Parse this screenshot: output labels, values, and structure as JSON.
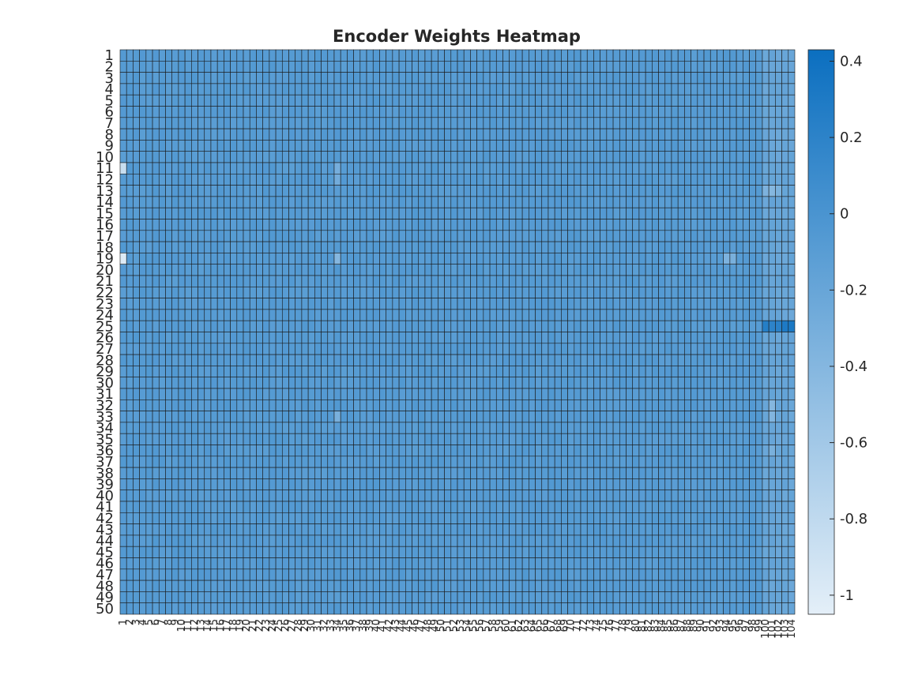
{
  "chart_data": {
    "type": "heatmap",
    "title": "Encoder Weights Heatmap",
    "xlabel": "",
    "ylabel": "",
    "n_rows": 50,
    "n_cols": 104,
    "row_labels": [
      "1",
      "2",
      "3",
      "4",
      "5",
      "6",
      "7",
      "8",
      "9",
      "10",
      "11",
      "12",
      "13",
      "14",
      "15",
      "16",
      "17",
      "18",
      "19",
      "20",
      "21",
      "22",
      "23",
      "24",
      "25",
      "26",
      "27",
      "28",
      "29",
      "30",
      "31",
      "32",
      "33",
      "34",
      "35",
      "36",
      "37",
      "38",
      "39",
      "40",
      "41",
      "42",
      "43",
      "44",
      "45",
      "46",
      "47",
      "48",
      "49",
      "50"
    ],
    "col_labels": [
      "1",
      "2",
      "3",
      "4",
      "5",
      "6",
      "7",
      "8",
      "9",
      "10",
      "11",
      "12",
      "13",
      "14",
      "15",
      "16",
      "17",
      "18",
      "19",
      "20",
      "21",
      "22",
      "23",
      "24",
      "25",
      "26",
      "27",
      "28",
      "29",
      "30",
      "31",
      "32",
      "33",
      "34",
      "35",
      "36",
      "37",
      "38",
      "39",
      "40",
      "41",
      "42",
      "43",
      "44",
      "45",
      "46",
      "47",
      "48",
      "49",
      "50",
      "51",
      "52",
      "53",
      "54",
      "55",
      "56",
      "57",
      "58",
      "59",
      "60",
      "61",
      "62",
      "63",
      "64",
      "65",
      "66",
      "67",
      "68",
      "69",
      "70",
      "71",
      "72",
      "73",
      "74",
      "75",
      "76",
      "77",
      "78",
      "79",
      "80",
      "81",
      "82",
      "83",
      "84",
      "85",
      "86",
      "87",
      "88",
      "89",
      "90",
      "91",
      "92",
      "93",
      "94",
      "95",
      "96",
      "97",
      "98",
      "99",
      "100",
      "101",
      "102",
      "103",
      "104"
    ],
    "base_value": -0.08,
    "color_scale": {
      "min": -1.05,
      "max": 0.43,
      "low_color": "#e4eff8",
      "high_color": "#0b6fc0"
    },
    "colorbar_ticks": [
      0.4,
      0.2,
      0,
      -0.2,
      -0.4,
      -0.6,
      -0.8,
      -1
    ],
    "colorbar_tick_labels": [
      "0.4",
      "0.2",
      "0",
      "-0.2",
      "-0.4",
      "-0.6",
      "-0.8",
      "-1"
    ],
    "grid": true,
    "notable_cells": [
      {
        "row": 11,
        "col": 1,
        "value": -0.85
      },
      {
        "row": 19,
        "col": 1,
        "value": -1.0
      },
      {
        "row": 25,
        "col": 100,
        "value": 0.25
      },
      {
        "row": 25,
        "col": 101,
        "value": 0.2
      },
      {
        "row": 25,
        "col": 102,
        "value": 0.22
      },
      {
        "row": 25,
        "col": 103,
        "value": 0.3
      },
      {
        "row": 25,
        "col": 104,
        "value": 0.32
      },
      {
        "row": 19,
        "col": 34,
        "value": -0.4
      },
      {
        "row": 19,
        "col": 94,
        "value": -0.35
      },
      {
        "row": 19,
        "col": 95,
        "value": -0.32
      },
      {
        "row": 13,
        "col": 100,
        "value": -0.35
      },
      {
        "row": 13,
        "col": 101,
        "value": -0.4
      },
      {
        "row": 13,
        "col": 102,
        "value": -0.33
      },
      {
        "row": 32,
        "col": 101,
        "value": -0.4
      },
      {
        "row": 33,
        "col": 101,
        "value": -0.38
      },
      {
        "row": 36,
        "col": 101,
        "value": -0.32
      },
      {
        "row": 11,
        "col": 34,
        "value": -0.3
      },
      {
        "row": 12,
        "col": 34,
        "value": -0.28
      },
      {
        "row": 33,
        "col": 34,
        "value": -0.32
      }
    ],
    "column_trends": [
      {
        "from_col": 100,
        "to_col": 104,
        "value": -0.2
      }
    ]
  }
}
